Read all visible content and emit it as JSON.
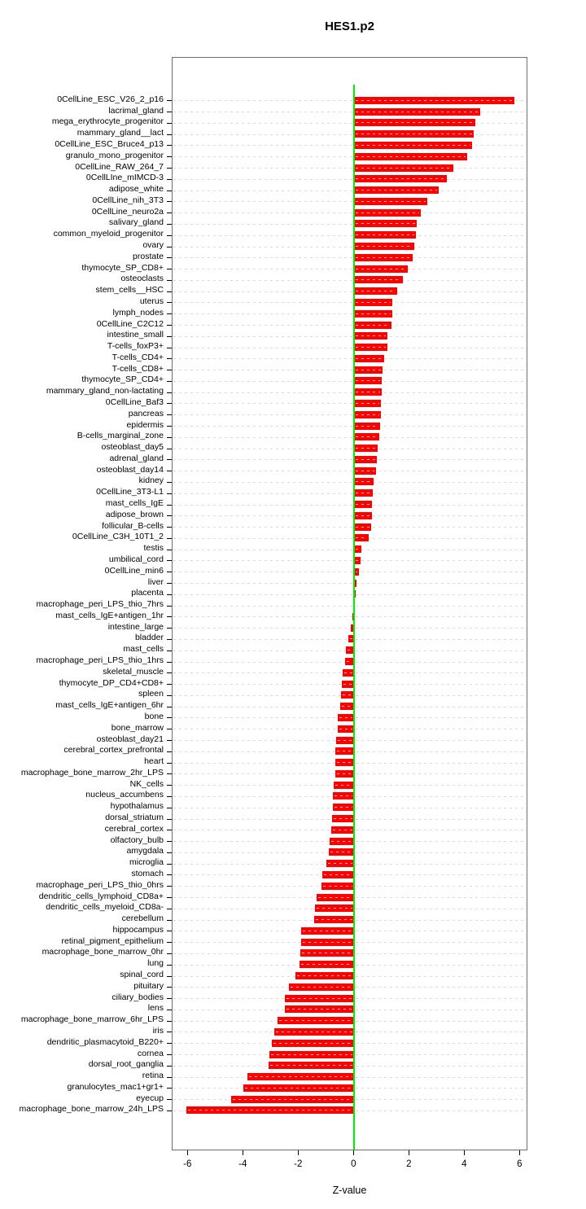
{
  "title": "HES1.p2",
  "x_axis_label": "Z-value",
  "chart_data": {
    "type": "bar",
    "orientation": "horizontal",
    "title": "HES1.p2",
    "xlabel": "Z-value",
    "ylabel": "",
    "xlim": [
      -6.55,
      6.35
    ],
    "xticks": [
      -6,
      -4,
      -2,
      0,
      2,
      4,
      6
    ],
    "grid": "dashed horizontal per category",
    "legend": "none",
    "bar_color": "#ff0000",
    "zero_line_color": "#00ee00",
    "categories": [
      "0CellLine_ESC_V26_2_p16",
      "lacrimal_gland",
      "mega_erythrocyte_progenitor",
      "mammary_gland__lact",
      "0CellLine_ESC_Bruce4_p13",
      "granulo_mono_progenitor",
      "0CellLine_RAW_264_7",
      "0CellLIne_mIMCD-3",
      "adipose_white",
      "0CellLine_nih_3T3",
      "0CellLine_neuro2a",
      "salivary_gland",
      "common_myeloid_progenitor",
      "ovary",
      "prostate",
      "thymocyte_SP_CD8+",
      "osteoclasts",
      "stem_cells__HSC",
      "uterus",
      "lymph_nodes",
      "0CellLine_C2C12",
      "intestine_small",
      "T-cells_foxP3+",
      "T-cells_CD4+",
      "T-cells_CD8+",
      "thymocyte_SP_CD4+",
      "mammary_gland_non-lactating",
      "0CellLine_Baf3",
      "pancreas",
      "epidermis",
      "B-cells_marginal_zone",
      "osteoblast_day5",
      "adrenal_gland",
      "osteoblast_day14",
      "kidney",
      "0CellLine_3T3-L1",
      "mast_cells_IgE",
      "adipose_brown",
      "follicular_B-cells",
      "0CellLine_C3H_10T1_2",
      "testis",
      "umbilical_cord",
      "0CellLine_min6",
      "liver",
      "placenta",
      "macrophage_peri_LPS_thio_7hrs",
      "mast_cells_IgE+antigen_1hr",
      "intestine_large",
      "bladder",
      "mast_cells",
      "macrophage_peri_LPS_thio_1hrs",
      "skeletal_muscle",
      "thymocyte_DP_CD4+CD8+",
      "spleen",
      "mast_cells_IgE+antigen_6hr",
      "bone",
      "bone_marrow",
      "osteoblast_day21",
      "cerebral_cortex_prefrontal",
      "heart",
      "macrophage_bone_marrow_2hr_LPS",
      "NK_cells",
      "nucleus_accumbens",
      "hypothalamus",
      "dorsal_striatum",
      "cerebral_cortex",
      "olfactory_bulb",
      "amygdala",
      "microglia",
      "stomach",
      "macrophage_peri_LPS_thio_0hrs",
      "dendritic_cells_lymphoid_CD8a+",
      "dendritic_cells_myeloid_CD8a-",
      "cerebellum",
      "hippocampus",
      "retinal_pigment_epithelium",
      "macrophage_bone_marrow_0hr",
      "lung",
      "spinal_cord",
      "pituitary",
      "ciliary_bodies",
      "lens",
      "macrophage_bone_marrow_6hr_LPS",
      "iris",
      "dendritic_plasmacytoid_B220+",
      "cornea",
      "dorsal_root_ganglia",
      "retina",
      "granulocytes_mac1+gr1+",
      "eyecup",
      "macrophage_bone_marrow_24h_LPS"
    ],
    "values": [
      5.8,
      4.55,
      4.37,
      4.31,
      4.25,
      4.07,
      3.57,
      3.33,
      3.05,
      2.65,
      2.4,
      2.26,
      2.22,
      2.16,
      2.12,
      1.92,
      1.76,
      1.56,
      1.38,
      1.37,
      1.34,
      1.21,
      1.19,
      1.08,
      1.03,
      1.0,
      0.98,
      0.97,
      0.96,
      0.92,
      0.9,
      0.84,
      0.81,
      0.79,
      0.71,
      0.67,
      0.65,
      0.64,
      0.6,
      0.52,
      0.26,
      0.24,
      0.16,
      0.09,
      0.06,
      -0.05,
      -0.08,
      -0.14,
      -0.22,
      -0.29,
      -0.33,
      -0.42,
      -0.46,
      -0.47,
      -0.52,
      -0.59,
      -0.6,
      -0.67,
      -0.68,
      -0.7,
      -0.7,
      -0.74,
      -0.78,
      -0.78,
      -0.81,
      -0.82,
      -0.88,
      -0.92,
      -1.0,
      -1.15,
      -1.2,
      -1.35,
      -1.41,
      -1.45,
      -1.92,
      -1.93,
      -1.94,
      -1.97,
      -2.13,
      -2.37,
      -2.51,
      -2.52,
      -2.77,
      -2.9,
      -2.98,
      -3.07,
      -3.1,
      -3.87,
      -4.02,
      -4.46,
      -6.07
    ]
  }
}
